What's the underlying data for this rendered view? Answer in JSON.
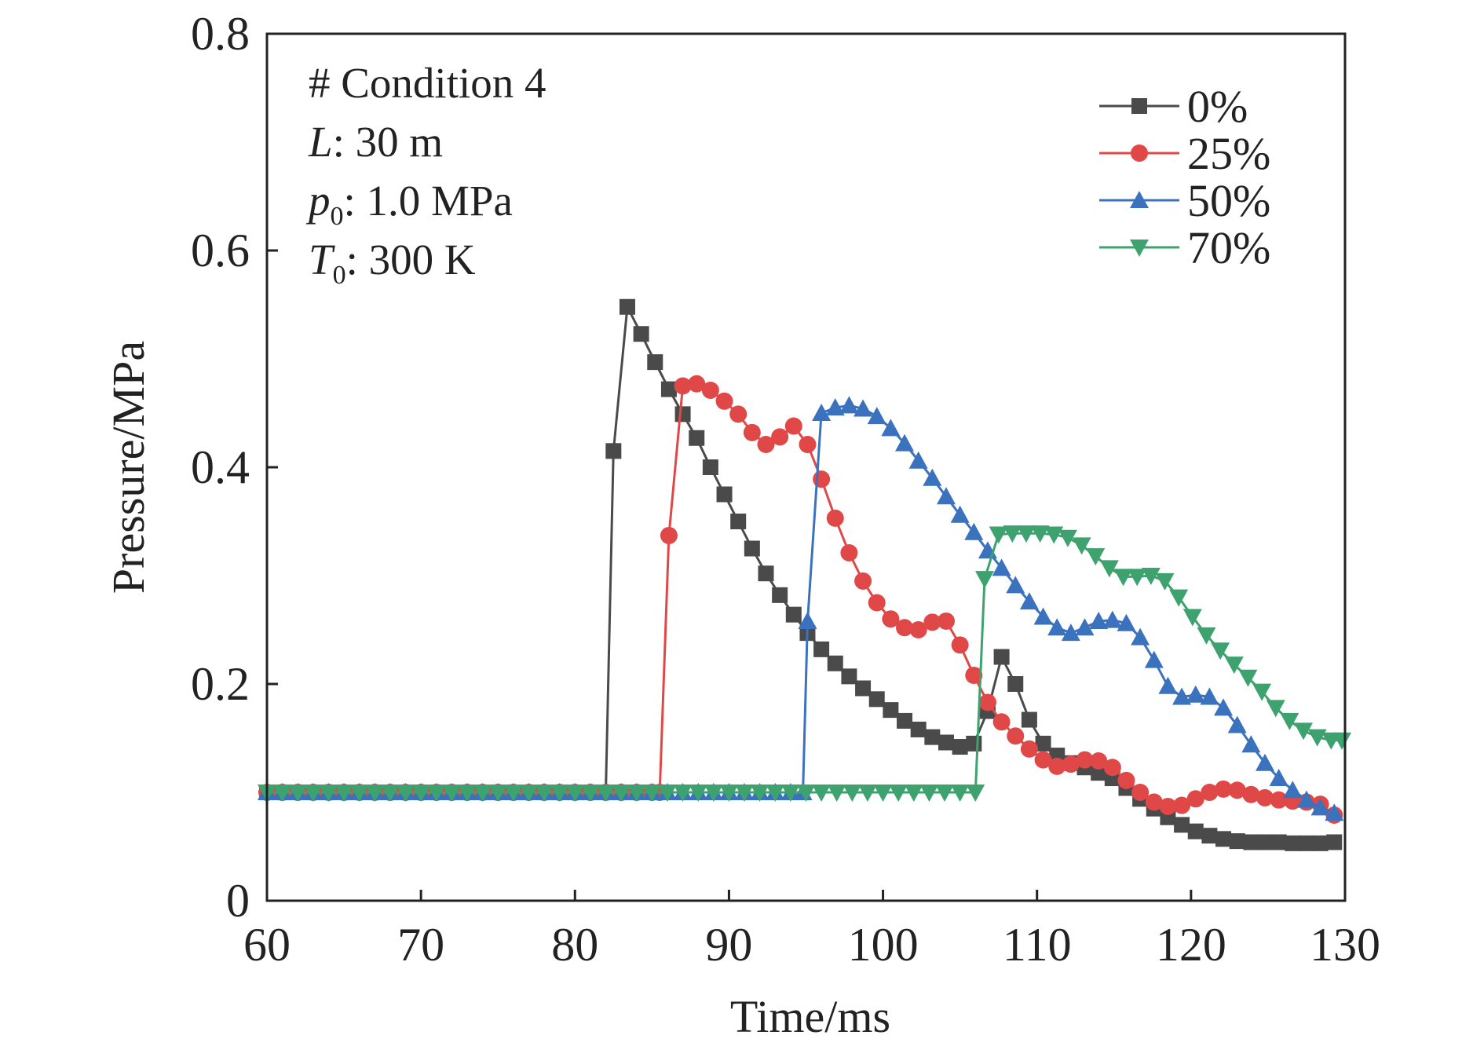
{
  "chart_data": {
    "type": "line",
    "xlabel": "Time/ms",
    "ylabel": "Pressure/MPa",
    "xlim": [
      60,
      130
    ],
    "ylim": [
      0,
      0.8
    ],
    "xticks": [
      60,
      70,
      80,
      90,
      100,
      110,
      120,
      130
    ],
    "yticks": [
      {
        "value": 0,
        "label": "0"
      },
      {
        "value": 0.2,
        "label": "0.2"
      },
      {
        "value": 0.4,
        "label": "0.4"
      },
      {
        "value": 0.6,
        "label": "0.6"
      },
      {
        "value": 0.8,
        "label": "0.8"
      }
    ],
    "grid": false,
    "legend_position": "top-right",
    "annotations": [
      {
        "prefix": "# Condition 4",
        "sub": "",
        "rest": ""
      },
      {
        "prefix": "L",
        "sub": "",
        "rest": ": 30 m"
      },
      {
        "prefix": "p",
        "sub": "0",
        "rest": ": 1.0 MPa"
      },
      {
        "prefix": "T",
        "sub": "0",
        "rest": ": 300 K"
      }
    ],
    "series": [
      {
        "name": "0%",
        "color": "#4a4a4a",
        "marker": "square",
        "points": [
          [
            60,
            0.1
          ],
          [
            61,
            0.1
          ],
          [
            62,
            0.1
          ],
          [
            63,
            0.1
          ],
          [
            64,
            0.1
          ],
          [
            65,
            0.1
          ],
          [
            66,
            0.1
          ],
          [
            67,
            0.1
          ],
          [
            68,
            0.1
          ],
          [
            69,
            0.1
          ],
          [
            70,
            0.1
          ],
          [
            71,
            0.1
          ],
          [
            72,
            0.1
          ],
          [
            73,
            0.1
          ],
          [
            74,
            0.1
          ],
          [
            75,
            0.1
          ],
          [
            76,
            0.1
          ],
          [
            77,
            0.1
          ],
          [
            78,
            0.1
          ],
          [
            79,
            0.1
          ],
          [
            80,
            0.1
          ],
          [
            81,
            0.1
          ],
          [
            82,
            0.1
          ],
          [
            82.5,
            0.415
          ],
          [
            83.4,
            0.548
          ],
          [
            84.3,
            0.523
          ],
          [
            85.2,
            0.497
          ],
          [
            86.1,
            0.472
          ],
          [
            87,
            0.449
          ],
          [
            87.9,
            0.427
          ],
          [
            88.8,
            0.4
          ],
          [
            89.7,
            0.375
          ],
          [
            90.6,
            0.35
          ],
          [
            91.5,
            0.325
          ],
          [
            92.4,
            0.302
          ],
          [
            93.3,
            0.282
          ],
          [
            94.2,
            0.264
          ],
          [
            95.1,
            0.247
          ],
          [
            96,
            0.232
          ],
          [
            96.9,
            0.219
          ],
          [
            97.8,
            0.207
          ],
          [
            98.7,
            0.196
          ],
          [
            99.6,
            0.186
          ],
          [
            100.5,
            0.176
          ],
          [
            101.4,
            0.166
          ],
          [
            102.3,
            0.158
          ],
          [
            103.2,
            0.151
          ],
          [
            104.1,
            0.146
          ],
          [
            105,
            0.142
          ],
          [
            105.9,
            0.145
          ],
          [
            106.8,
            0.175
          ],
          [
            107.7,
            0.225
          ],
          [
            108.6,
            0.2
          ],
          [
            109.5,
            0.167
          ],
          [
            110.4,
            0.145
          ],
          [
            111.3,
            0.134
          ],
          [
            112.2,
            0.127
          ],
          [
            113.1,
            0.123
          ],
          [
            114,
            0.118
          ],
          [
            114.9,
            0.113
          ],
          [
            115.8,
            0.104
          ],
          [
            116.7,
            0.094
          ],
          [
            117.6,
            0.085
          ],
          [
            118.5,
            0.077
          ],
          [
            119.4,
            0.07
          ],
          [
            120.3,
            0.064
          ],
          [
            121.2,
            0.06
          ],
          [
            122.1,
            0.057
          ],
          [
            123,
            0.055
          ],
          [
            123.9,
            0.054
          ],
          [
            124.8,
            0.054
          ],
          [
            125.7,
            0.054
          ],
          [
            126.6,
            0.053
          ],
          [
            127.5,
            0.053
          ],
          [
            128.4,
            0.053
          ],
          [
            129.3,
            0.054
          ]
        ]
      },
      {
        "name": "25%",
        "color": "#e04848",
        "marker": "circle",
        "points": [
          [
            60,
            0.1
          ],
          [
            61,
            0.1
          ],
          [
            62,
            0.1
          ],
          [
            63,
            0.1
          ],
          [
            64,
            0.1
          ],
          [
            65,
            0.1
          ],
          [
            66,
            0.1
          ],
          [
            67,
            0.1
          ],
          [
            68,
            0.1
          ],
          [
            69,
            0.1
          ],
          [
            70,
            0.1
          ],
          [
            71,
            0.1
          ],
          [
            72,
            0.1
          ],
          [
            73,
            0.1
          ],
          [
            74,
            0.1
          ],
          [
            75,
            0.1
          ],
          [
            76,
            0.1
          ],
          [
            77,
            0.1
          ],
          [
            78,
            0.1
          ],
          [
            79,
            0.1
          ],
          [
            80,
            0.1
          ],
          [
            81,
            0.1
          ],
          [
            82,
            0.1
          ],
          [
            83,
            0.1
          ],
          [
            84,
            0.1
          ],
          [
            85,
            0.1
          ],
          [
            85.5,
            0.1
          ],
          [
            86.1,
            0.337
          ],
          [
            87,
            0.475
          ],
          [
            87.9,
            0.477
          ],
          [
            88.8,
            0.471
          ],
          [
            89.7,
            0.461
          ],
          [
            90.6,
            0.449
          ],
          [
            91.5,
            0.432
          ],
          [
            92.4,
            0.421
          ],
          [
            93.3,
            0.428
          ],
          [
            94.2,
            0.438
          ],
          [
            95.1,
            0.421
          ],
          [
            96,
            0.389
          ],
          [
            96.9,
            0.353
          ],
          [
            97.8,
            0.321
          ],
          [
            98.7,
            0.295
          ],
          [
            99.6,
            0.275
          ],
          [
            100.5,
            0.26
          ],
          [
            101.4,
            0.252
          ],
          [
            102.3,
            0.25
          ],
          [
            103.2,
            0.257
          ],
          [
            104.1,
            0.258
          ],
          [
            105,
            0.236
          ],
          [
            105.9,
            0.208
          ],
          [
            106.8,
            0.183
          ],
          [
            107.7,
            0.165
          ],
          [
            108.6,
            0.152
          ],
          [
            109.5,
            0.14
          ],
          [
            110.4,
            0.13
          ],
          [
            111.3,
            0.124
          ],
          [
            112.2,
            0.126
          ],
          [
            113.1,
            0.13
          ],
          [
            114,
            0.129
          ],
          [
            114.9,
            0.123
          ],
          [
            115.8,
            0.111
          ],
          [
            116.7,
            0.1
          ],
          [
            117.6,
            0.091
          ],
          [
            118.5,
            0.087
          ],
          [
            119.4,
            0.088
          ],
          [
            120.3,
            0.094
          ],
          [
            121.2,
            0.1
          ],
          [
            122.1,
            0.103
          ],
          [
            123,
            0.102
          ],
          [
            123.9,
            0.098
          ],
          [
            124.8,
            0.095
          ],
          [
            125.7,
            0.093
          ],
          [
            126.6,
            0.092
          ],
          [
            127.5,
            0.091
          ],
          [
            128.4,
            0.089
          ],
          [
            129.3,
            0.079
          ]
        ]
      },
      {
        "name": "50%",
        "color": "#3a72be",
        "marker": "triangle-up",
        "points": [
          [
            60,
            0.1
          ],
          [
            61,
            0.1
          ],
          [
            62,
            0.1
          ],
          [
            63,
            0.1
          ],
          [
            64,
            0.1
          ],
          [
            65,
            0.1
          ],
          [
            66,
            0.1
          ],
          [
            67,
            0.1
          ],
          [
            68,
            0.1
          ],
          [
            69,
            0.1
          ],
          [
            70,
            0.1
          ],
          [
            71,
            0.1
          ],
          [
            72,
            0.1
          ],
          [
            73,
            0.1
          ],
          [
            74,
            0.1
          ],
          [
            75,
            0.1
          ],
          [
            76,
            0.1
          ],
          [
            77,
            0.1
          ],
          [
            78,
            0.1
          ],
          [
            79,
            0.1
          ],
          [
            80,
            0.1
          ],
          [
            81,
            0.1
          ],
          [
            82,
            0.1
          ],
          [
            83,
            0.1
          ],
          [
            84,
            0.1
          ],
          [
            85,
            0.1
          ],
          [
            86,
            0.1
          ],
          [
            87,
            0.1
          ],
          [
            88,
            0.1
          ],
          [
            89,
            0.1
          ],
          [
            90,
            0.1
          ],
          [
            91,
            0.1
          ],
          [
            92,
            0.1
          ],
          [
            93,
            0.1
          ],
          [
            94,
            0.1
          ],
          [
            94.8,
            0.1
          ],
          [
            95.1,
            0.258
          ],
          [
            96,
            0.45
          ],
          [
            96.9,
            0.455
          ],
          [
            97.8,
            0.457
          ],
          [
            98.7,
            0.454
          ],
          [
            99.6,
            0.447
          ],
          [
            100.5,
            0.436
          ],
          [
            101.4,
            0.422
          ],
          [
            102.3,
            0.406
          ],
          [
            103.2,
            0.39
          ],
          [
            104.1,
            0.373
          ],
          [
            105,
            0.356
          ],
          [
            105.9,
            0.34
          ],
          [
            106.8,
            0.323
          ],
          [
            107.7,
            0.307
          ],
          [
            108.6,
            0.291
          ],
          [
            109.5,
            0.276
          ],
          [
            110.4,
            0.262
          ],
          [
            111.3,
            0.252
          ],
          [
            112.2,
            0.247
          ],
          [
            113.1,
            0.252
          ],
          [
            114,
            0.258
          ],
          [
            114.9,
            0.259
          ],
          [
            115.8,
            0.256
          ],
          [
            116.7,
            0.243
          ],
          [
            117.6,
            0.222
          ],
          [
            118.5,
            0.198
          ],
          [
            119.4,
            0.188
          ],
          [
            120.3,
            0.19
          ],
          [
            121.2,
            0.188
          ],
          [
            122.1,
            0.178
          ],
          [
            123,
            0.162
          ],
          [
            123.9,
            0.144
          ],
          [
            124.8,
            0.127
          ],
          [
            125.7,
            0.113
          ],
          [
            126.6,
            0.102
          ],
          [
            127.5,
            0.093
          ],
          [
            128.4,
            0.086
          ],
          [
            129.3,
            0.081
          ]
        ]
      },
      {
        "name": "70%",
        "color": "#3ea26e",
        "marker": "triangle-down",
        "points": [
          [
            60,
            0.1
          ],
          [
            61,
            0.1
          ],
          [
            62,
            0.1
          ],
          [
            63,
            0.1
          ],
          [
            64,
            0.1
          ],
          [
            65,
            0.1
          ],
          [
            66,
            0.1
          ],
          [
            67,
            0.1
          ],
          [
            68,
            0.1
          ],
          [
            69,
            0.1
          ],
          [
            70,
            0.1
          ],
          [
            71,
            0.1
          ],
          [
            72,
            0.1
          ],
          [
            73,
            0.1
          ],
          [
            74,
            0.1
          ],
          [
            75,
            0.1
          ],
          [
            76,
            0.1
          ],
          [
            77,
            0.1
          ],
          [
            78,
            0.1
          ],
          [
            79,
            0.1
          ],
          [
            80,
            0.1
          ],
          [
            81,
            0.1
          ],
          [
            82,
            0.1
          ],
          [
            83,
            0.1
          ],
          [
            84,
            0.1
          ],
          [
            85,
            0.1
          ],
          [
            86,
            0.1
          ],
          [
            87,
            0.1
          ],
          [
            88,
            0.1
          ],
          [
            89,
            0.1
          ],
          [
            90,
            0.1
          ],
          [
            91,
            0.1
          ],
          [
            92,
            0.1
          ],
          [
            93,
            0.1
          ],
          [
            94,
            0.1
          ],
          [
            95,
            0.1
          ],
          [
            96,
            0.1
          ],
          [
            97,
            0.1
          ],
          [
            98,
            0.1
          ],
          [
            99,
            0.1
          ],
          [
            100,
            0.1
          ],
          [
            101,
            0.1
          ],
          [
            102,
            0.1
          ],
          [
            103,
            0.1
          ],
          [
            104,
            0.1
          ],
          [
            105,
            0.1
          ],
          [
            106,
            0.1
          ],
          [
            106.6,
            0.297
          ],
          [
            107.5,
            0.338
          ],
          [
            108.4,
            0.339
          ],
          [
            109.3,
            0.339
          ],
          [
            110.2,
            0.339
          ],
          [
            111.1,
            0.338
          ],
          [
            112,
            0.335
          ],
          [
            112.9,
            0.328
          ],
          [
            113.8,
            0.318
          ],
          [
            114.7,
            0.307
          ],
          [
            115.6,
            0.299
          ],
          [
            116.5,
            0.299
          ],
          [
            117.4,
            0.3
          ],
          [
            118.3,
            0.295
          ],
          [
            119.2,
            0.28
          ],
          [
            120.1,
            0.262
          ],
          [
            121,
            0.245
          ],
          [
            121.9,
            0.231
          ],
          [
            122.8,
            0.218
          ],
          [
            123.7,
            0.206
          ],
          [
            124.6,
            0.193
          ],
          [
            125.5,
            0.178
          ],
          [
            126.4,
            0.166
          ],
          [
            127.3,
            0.157
          ],
          [
            128.2,
            0.151
          ],
          [
            129.1,
            0.148
          ],
          [
            129.8,
            0.148
          ]
        ]
      }
    ]
  }
}
